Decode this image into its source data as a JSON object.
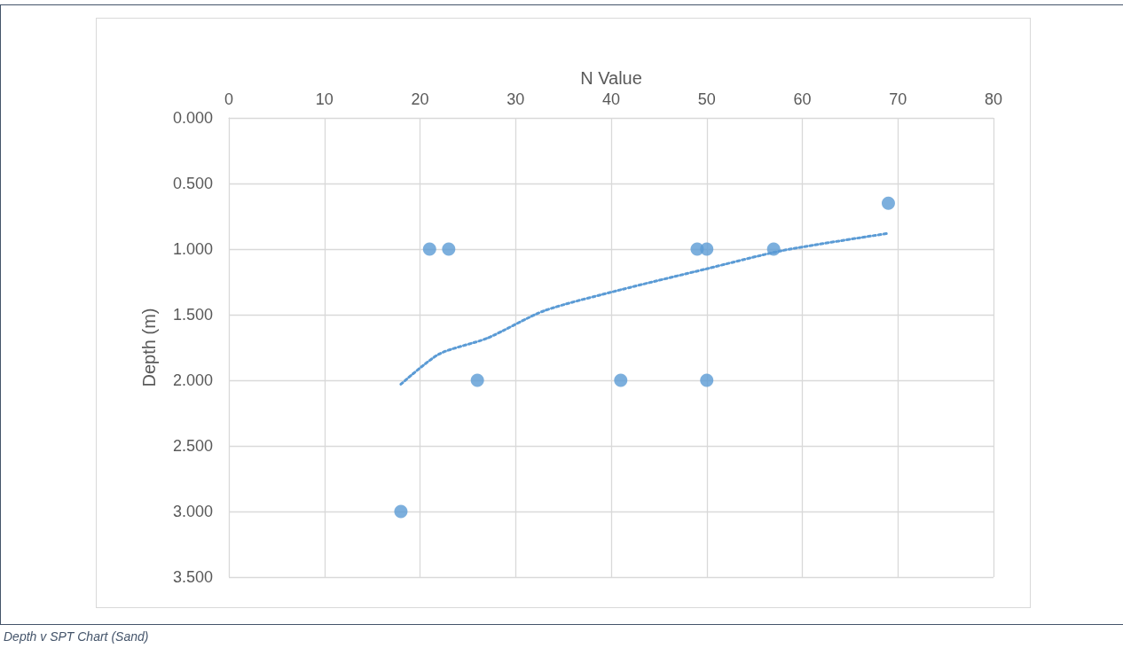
{
  "chart_data": {
    "type": "scatter",
    "xlabel": "N Value",
    "ylabel": "Depth (m)",
    "annotations": [
      "Depth v SPT Chart (Sand)"
    ],
    "xlim": [
      0,
      80
    ],
    "xticks": [
      0,
      10,
      20,
      30,
      40,
      50,
      60,
      70,
      80
    ],
    "ylim": [
      3.5,
      0
    ],
    "yticks": [
      {
        "value": 0,
        "label": "0.000"
      },
      {
        "value": 0.5,
        "label": "0.500"
      },
      {
        "value": 1,
        "label": "1.000"
      },
      {
        "value": 1.5,
        "label": "1.500"
      },
      {
        "value": 2,
        "label": "2.000"
      },
      {
        "value": 2.5,
        "label": "2.500"
      },
      {
        "value": 3,
        "label": "3.000"
      },
      {
        "value": 3.5,
        "label": "3.500"
      }
    ],
    "grid": true,
    "marker": "circle",
    "series": [
      {
        "color": "#5b9bd5",
        "x": [
          18,
          21,
          23,
          26,
          41,
          49,
          50,
          50,
          57,
          69
        ],
        "values": [
          3,
          1,
          1,
          2,
          2,
          1,
          1,
          2,
          1,
          0.65
        ]
      },
      {
        "type": "line",
        "color": "#5b9bd5",
        "marker": "none",
        "line_style": "dotted",
        "x": [
          18,
          22,
          27,
          33,
          41,
          50,
          58,
          69
        ],
        "values": [
          2.03,
          1.8,
          1.68,
          1.47,
          1.31,
          1.15,
          1.01,
          0.88
        ]
      }
    ]
  }
}
